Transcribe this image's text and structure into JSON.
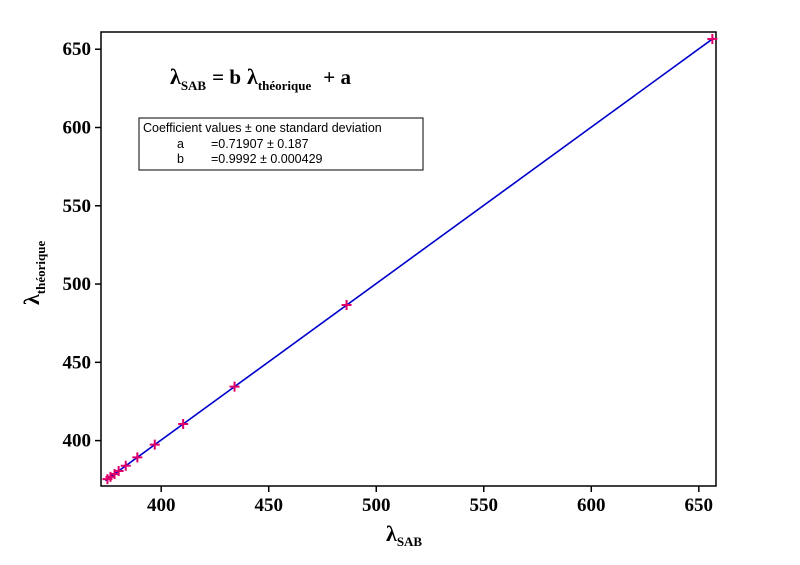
{
  "chart_data": {
    "type": "scatter",
    "title": "",
    "equation": {
      "lhs_symbol": "λ",
      "lhs_sub": "SAB",
      "middle": "= b",
      "rhs_symbol": "λ",
      "rhs_sub": "théorique",
      "tail": "+ a"
    },
    "xlabel": {
      "symbol": "λ",
      "sub": "SAB"
    },
    "ylabel": {
      "symbol": "λ",
      "sub": "théorique"
    },
    "xlim": [
      372,
      658
    ],
    "ylim": [
      371,
      661
    ],
    "xticks": [
      400,
      450,
      500,
      550,
      600,
      650
    ],
    "yticks": [
      400,
      450,
      500,
      550,
      600,
      650
    ],
    "grid": false,
    "marker_color": "#e0006a",
    "line_color": "#0000cc",
    "points": [
      {
        "x": 375.0,
        "y": 375.4
      },
      {
        "x": 376.4,
        "y": 376.8
      },
      {
        "x": 378.3,
        "y": 378.7
      },
      {
        "x": 380.2,
        "y": 380.6
      },
      {
        "x": 383.5,
        "y": 383.9
      },
      {
        "x": 388.9,
        "y": 389.3
      },
      {
        "x": 397.0,
        "y": 397.4
      },
      {
        "x": 410.2,
        "y": 410.6
      },
      {
        "x": 434.1,
        "y": 434.5
      },
      {
        "x": 486.2,
        "y": 486.6
      },
      {
        "x": 656.3,
        "y": 656.5
      }
    ],
    "fit": {
      "a": 0.71907,
      "b": 0.9992,
      "x_start": 374,
      "x_end": 657
    },
    "coefficients_box": {
      "header": "Coefficient values ± one standard deviation",
      "rows": [
        {
          "name": "a",
          "value": "=0.71907 ± 0.187"
        },
        {
          "name": "b",
          "value": "=0.9992 ± 0.000429"
        }
      ]
    }
  }
}
